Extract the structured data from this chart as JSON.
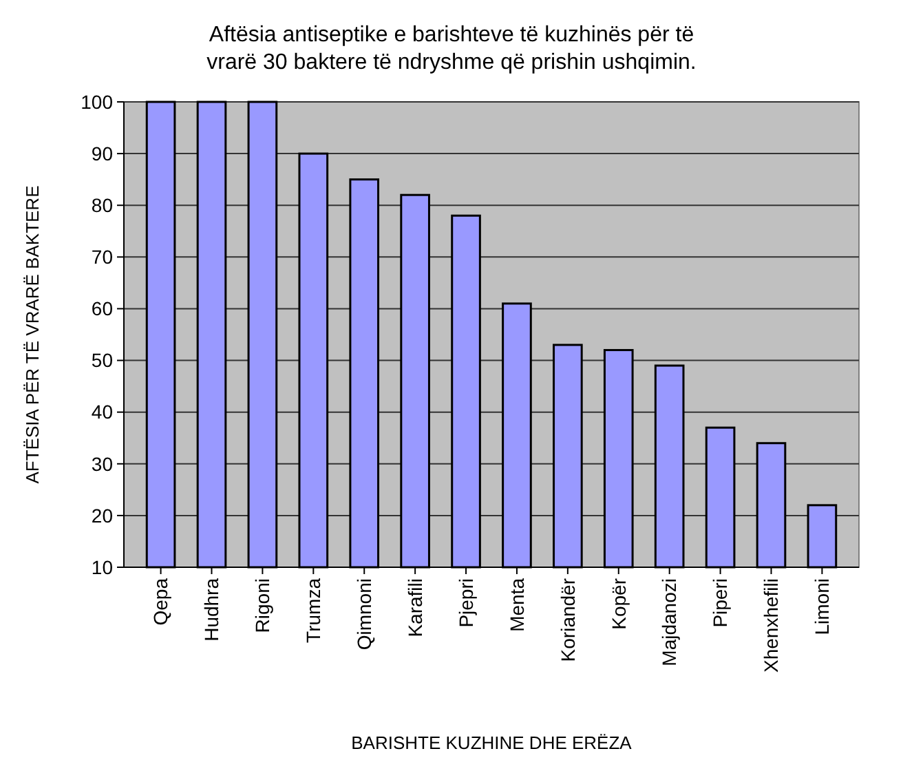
{
  "chart_data": {
    "type": "bar",
    "title": "Aftësia antiseptike e barishteve të kuzhinës për të vrarë 30 baktere të ndryshme që prishin ushqimin.",
    "xlabel": "BARISHTE KUZHINE DHE ERËZA",
    "ylabel": "AFTËSIA PËR TË VRARË BAKTERE",
    "categories": [
      "Qepa",
      "Hudhra",
      "Rigoni",
      "Trumza",
      "Qimnoni",
      "Karafili",
      "Pjepri",
      "Menta",
      "Koriandër",
      "Kopër",
      "Majdanozi",
      "Piperi",
      "Xhenxhefili",
      "Limoni"
    ],
    "values": [
      100,
      100,
      100,
      90,
      85,
      82,
      78,
      61,
      53,
      52,
      49,
      37,
      34,
      22
    ],
    "color": "#9999ff",
    "ylim": [
      10,
      100
    ],
    "yticks": [
      10,
      20,
      30,
      40,
      50,
      60,
      70,
      80,
      90,
      100
    ],
    "grid": "y"
  }
}
